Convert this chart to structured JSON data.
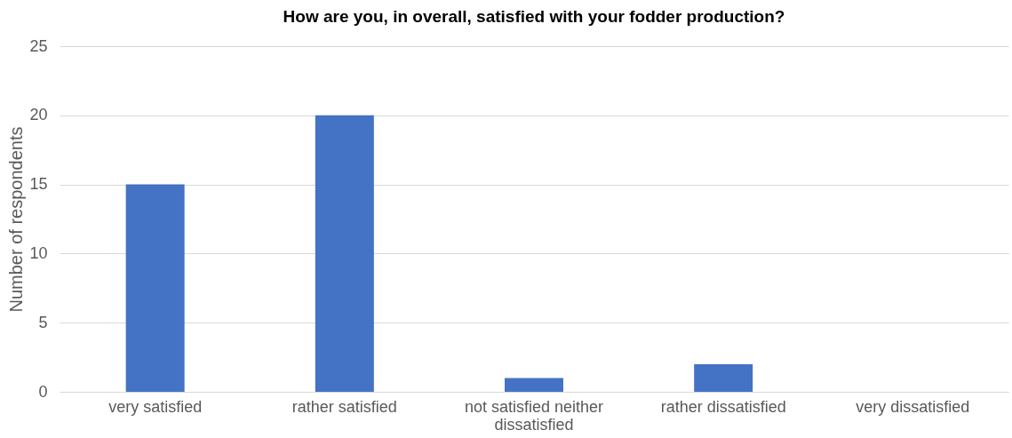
{
  "chart_data": {
    "type": "bar",
    "title": "How are you, in overall, satisfied with your fodder production?",
    "ylabel": "Number of respondents",
    "categories": [
      "very satisfied",
      "rather satisfied",
      "not satisfied neither dissatisfied",
      "rather dissatisfied",
      "very dissatisfied"
    ],
    "values": [
      15,
      20,
      1,
      2,
      0
    ],
    "color": "#4472c4",
    "ylim": [
      0,
      25
    ],
    "yticks": [
      0,
      5,
      10,
      15,
      20,
      25
    ],
    "grid": "y"
  }
}
